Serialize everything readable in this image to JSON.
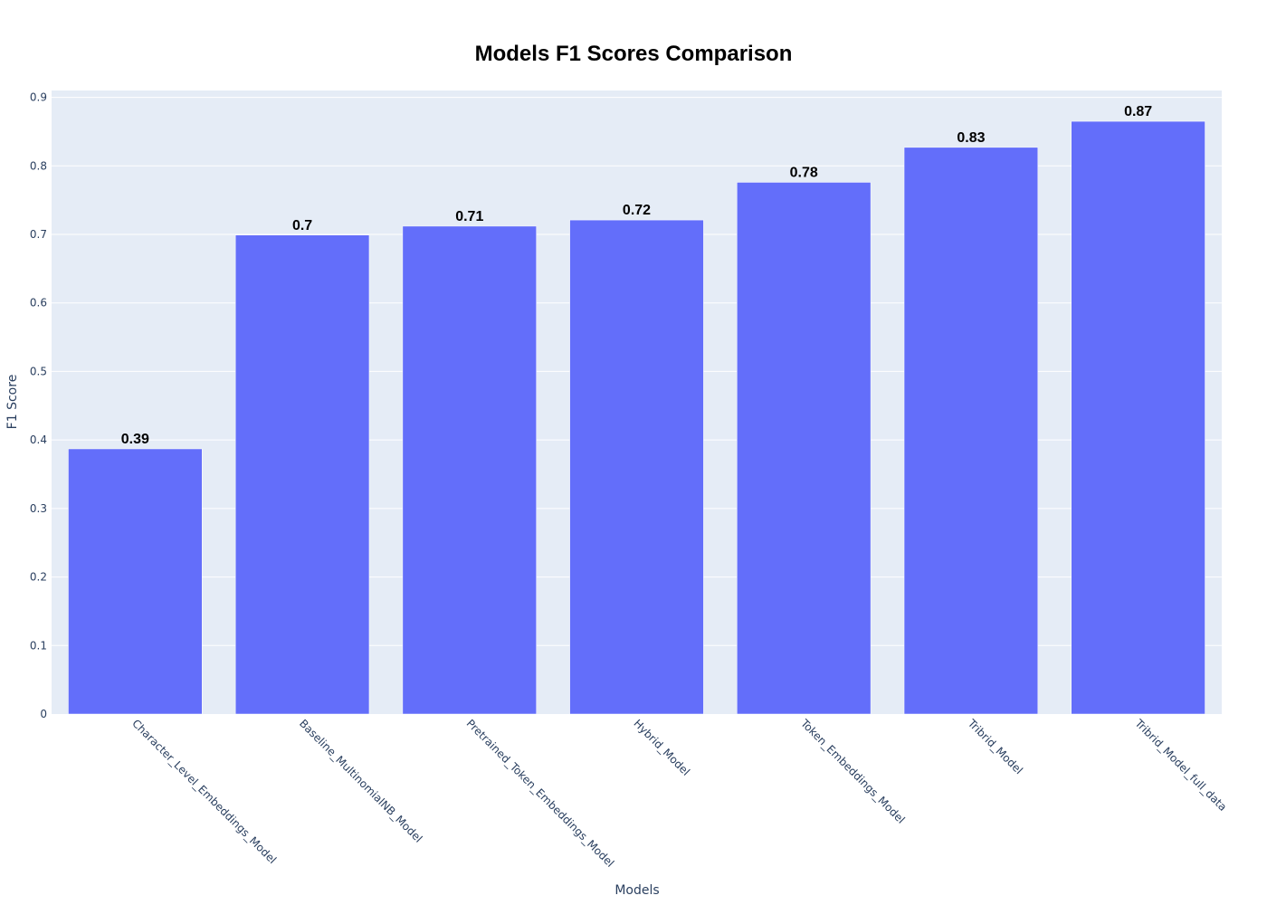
{
  "chart_data": {
    "type": "bar",
    "title": "Models F1 Scores Comparison",
    "xlabel": "Models",
    "ylabel": "F1 Score",
    "categories": [
      "Character_Level_Embeddings_Model",
      "Baseline_MultinomialNB_Model",
      "Pretrained_Token_Embeddings_Model",
      "Hybrid_Model",
      "Token_Embeddings_Model",
      "Tribrid_Model",
      "Tribrid_Model_full_data"
    ],
    "values": [
      0.387,
      0.699,
      0.712,
      0.721,
      0.776,
      0.827,
      0.865
    ],
    "data_labels": [
      "0.39",
      "0.7",
      "0.71",
      "0.72",
      "0.78",
      "0.83",
      "0.87"
    ],
    "ylim": [
      0,
      0.91
    ],
    "yticks": [
      0,
      0.1,
      0.2,
      0.3,
      0.4,
      0.5,
      0.6,
      0.7,
      0.8,
      0.9
    ],
    "ytick_labels": [
      "0",
      "0.1",
      "0.2",
      "0.3",
      "0.4",
      "0.5",
      "0.6",
      "0.7",
      "0.8",
      "0.9"
    ],
    "grid": true,
    "legend": "none",
    "colors": {
      "bar": "#636efa",
      "plot_background": "#e5ecf6",
      "grid": "#ffffff",
      "axis_text": "#2a3f5f",
      "title": "#000000"
    }
  }
}
